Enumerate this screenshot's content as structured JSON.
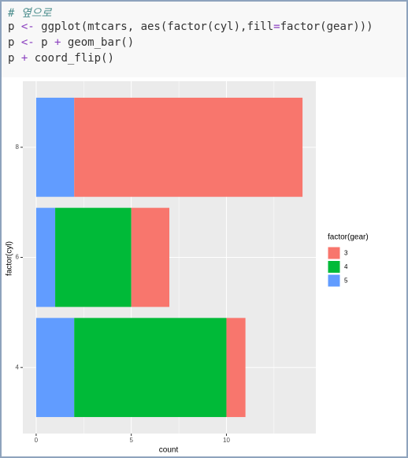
{
  "code": [
    [
      {
        "text": "# 옆으로",
        "color": "#4f8f8f",
        "italic": true
      }
    ],
    [
      {
        "text": "p ",
        "color": "#333333"
      },
      {
        "text": "<-",
        "color": "#8a3fbf"
      },
      {
        "text": " ggplot(mtcars, aes(factor(cyl),fill",
        "color": "#333333"
      },
      {
        "text": "=",
        "color": "#8a3fbf"
      },
      {
        "text": "factor(gear)))",
        "color": "#333333"
      }
    ],
    [
      {
        "text": "p ",
        "color": "#333333"
      },
      {
        "text": "<-",
        "color": "#8a3fbf"
      },
      {
        "text": " p ",
        "color": "#333333"
      },
      {
        "text": "+",
        "color": "#8a3fbf"
      },
      {
        "text": " geom_bar()",
        "color": "#333333"
      }
    ],
    [
      {
        "text": "p ",
        "color": "#333333"
      },
      {
        "text": "+",
        "color": "#8a3fbf"
      },
      {
        "text": " coord_flip()",
        "color": "#333333"
      }
    ]
  ],
  "chart_data": {
    "type": "bar",
    "orientation": "horizontal",
    "stacked": true,
    "xlabel": "count",
    "ylabel": "factor(cyl)",
    "categories": [
      "4",
      "6",
      "8"
    ],
    "series": [
      {
        "name": "3",
        "color": "#F8766D",
        "values": [
          1,
          2,
          12
        ]
      },
      {
        "name": "4",
        "color": "#00BA38",
        "values": [
          8,
          4,
          0
        ]
      },
      {
        "name": "5",
        "color": "#619CFF",
        "values": [
          2,
          1,
          2
        ]
      }
    ],
    "legend_title": "factor(gear)",
    "legend": "right",
    "xlim": [
      -0.7,
      14.7
    ],
    "xticks": [
      0,
      5,
      10
    ],
    "xminor": [
      2.5,
      7.5,
      12.5
    ],
    "grid": true
  }
}
